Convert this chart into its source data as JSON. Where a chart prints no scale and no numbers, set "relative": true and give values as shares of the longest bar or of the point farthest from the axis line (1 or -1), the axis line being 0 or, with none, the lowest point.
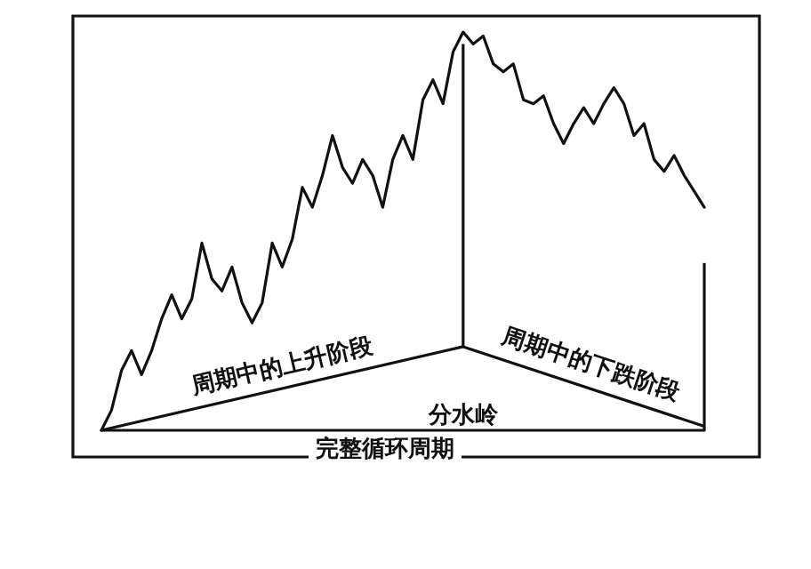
{
  "chart_data": {
    "type": "line",
    "relative": true,
    "grid": false,
    "marker": "none",
    "line_style": "solid",
    "annotations": [
      "周期中的上升阶段",
      "周期中的下跌阶段",
      "分水岭",
      "完整循环周期"
    ],
    "categories": [
      null,
      null,
      null,
      null,
      null,
      null,
      null,
      null,
      null,
      null,
      null,
      null,
      null,
      null,
      null,
      null,
      null,
      null,
      null,
      null,
      null,
      null,
      null,
      null,
      null,
      null,
      null,
      null,
      null,
      null,
      null,
      null,
      null,
      null,
      null,
      null,
      null,
      null,
      null,
      null,
      null,
      null,
      null,
      null,
      null,
      null,
      null,
      null,
      null,
      null,
      null,
      null,
      null,
      null,
      null,
      null,
      null,
      null,
      null,
      null,
      null
    ],
    "series": [
      {
        "color": "#111111",
        "values": [
          0,
          0.05,
          0.15,
          0.2,
          0.14,
          0.2,
          0.28,
          0.34,
          0.28,
          0.33,
          0.47,
          0.38,
          0.35,
          0.41,
          0.32,
          0.27,
          0.32,
          0.47,
          0.41,
          0.48,
          0.61,
          0.56,
          0.64,
          0.74,
          0.66,
          0.62,
          0.68,
          0.64,
          0.56,
          0.68,
          0.74,
          0.68,
          0.83,
          0.88,
          0.82,
          0.95,
          1,
          0.97,
          0.99,
          0.92,
          0.9,
          0.92,
          0.83,
          0.82,
          0.84,
          0.77,
          0.72,
          0.77,
          0.81,
          0.77,
          0.82,
          0.86,
          0.82,
          0.74,
          0.77,
          0.68,
          0.65,
          0.69,
          0.64,
          0.6,
          0.56
        ]
      }
    ]
  }
}
